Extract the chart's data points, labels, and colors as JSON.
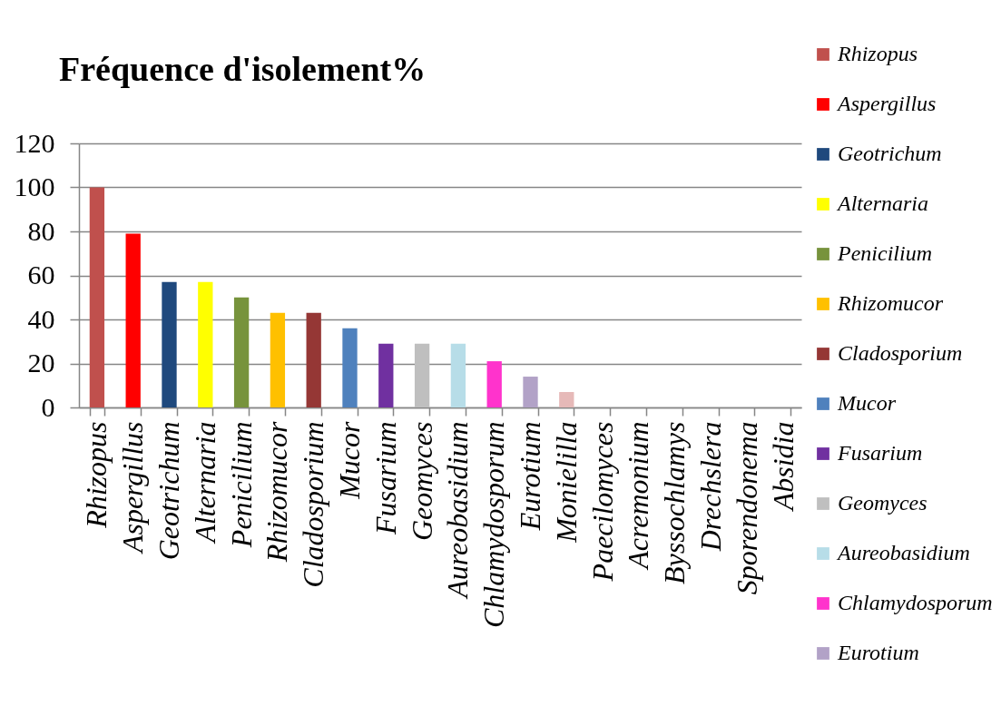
{
  "chart_data": {
    "type": "bar",
    "title": "Fréquence d'isolement%",
    "categories": [
      "Rhizopus",
      "Aspergillus",
      "Geotrichum",
      "Alternaria",
      "Penicilium",
      "Rhizomucor",
      "Cladosporium",
      "Mucor",
      "Fusarium",
      "Geomyces",
      "Aureobasidium",
      "Chlamydosporum",
      "Eurotium",
      "Monielilla",
      "Paecilomyces",
      "Acremonium",
      "Byssochlamys",
      "Drechslera",
      "Sporendonema",
      "Absidia"
    ],
    "stacked": true,
    "series": [
      {
        "name": "Rhizopus",
        "color": "#c0504d",
        "values": [
          100,
          null,
          null,
          null,
          null,
          null,
          null,
          null,
          null,
          null,
          null,
          null,
          null,
          null,
          null,
          null,
          null,
          null,
          null,
          null
        ]
      },
      {
        "name": "Aspergillus",
        "color": "#ff0000",
        "values": [
          null,
          79,
          null,
          null,
          null,
          null,
          null,
          null,
          null,
          null,
          null,
          null,
          null,
          null,
          null,
          null,
          null,
          null,
          null,
          null
        ]
      },
      {
        "name": "Geotrichum",
        "color": "#1f497d",
        "values": [
          null,
          null,
          57,
          null,
          null,
          null,
          null,
          null,
          null,
          null,
          null,
          null,
          null,
          null,
          null,
          null,
          null,
          null,
          null,
          null
        ]
      },
      {
        "name": "Alternaria",
        "color": "#ffff00",
        "values": [
          null,
          null,
          null,
          57,
          null,
          null,
          null,
          null,
          null,
          null,
          null,
          null,
          null,
          null,
          null,
          null,
          null,
          null,
          null,
          null
        ]
      },
      {
        "name": "Penicilium",
        "color": "#77933c",
        "values": [
          null,
          null,
          null,
          null,
          50,
          null,
          null,
          null,
          null,
          null,
          null,
          null,
          null,
          null,
          null,
          null,
          null,
          null,
          null,
          null
        ]
      },
      {
        "name": "Rhizomucor",
        "color": "#ffc000",
        "values": [
          null,
          null,
          null,
          null,
          null,
          43,
          null,
          null,
          null,
          null,
          null,
          null,
          null,
          null,
          null,
          null,
          null,
          null,
          null,
          null
        ]
      },
      {
        "name": "Cladosporium",
        "color": "#953735",
        "values": [
          null,
          null,
          null,
          null,
          null,
          null,
          43,
          null,
          null,
          null,
          null,
          null,
          null,
          null,
          null,
          null,
          null,
          null,
          null,
          null
        ]
      },
      {
        "name": "Mucor",
        "color": "#4f81bd",
        "values": [
          null,
          null,
          null,
          null,
          null,
          null,
          null,
          36,
          null,
          null,
          null,
          null,
          null,
          null,
          null,
          null,
          null,
          null,
          null,
          null
        ]
      },
      {
        "name": "Fusarium",
        "color": "#7030a0",
        "values": [
          null,
          null,
          null,
          null,
          null,
          null,
          null,
          null,
          29,
          null,
          null,
          null,
          null,
          null,
          null,
          null,
          null,
          null,
          null,
          null
        ]
      },
      {
        "name": "Geomyces",
        "color": "#bfbfbf",
        "values": [
          null,
          null,
          null,
          null,
          null,
          null,
          null,
          null,
          null,
          29,
          null,
          null,
          null,
          null,
          null,
          null,
          null,
          null,
          null,
          null
        ]
      },
      {
        "name": "Aureobasidium",
        "color": "#b7dde8",
        "values": [
          null,
          null,
          null,
          null,
          null,
          null,
          null,
          null,
          null,
          null,
          29,
          null,
          null,
          null,
          null,
          null,
          null,
          null,
          null,
          null
        ]
      },
      {
        "name": "Chlamydosporum",
        "color": "#ff33cc",
        "values": [
          null,
          null,
          null,
          null,
          null,
          null,
          null,
          null,
          null,
          null,
          null,
          21,
          null,
          null,
          null,
          null,
          null,
          null,
          null,
          null
        ]
      },
      {
        "name": "Eurotium",
        "color": "#b2a2c7",
        "values": [
          null,
          null,
          null,
          null,
          null,
          null,
          null,
          null,
          null,
          null,
          null,
          null,
          14,
          null,
          null,
          null,
          null,
          null,
          null,
          null
        ]
      },
      {
        "color": "#e6b9b8",
        "values": [
          null,
          null,
          null,
          null,
          null,
          null,
          null,
          null,
          null,
          null,
          null,
          null,
          null,
          7,
          0,
          0,
          0,
          0,
          0,
          0
        ]
      }
    ],
    "ylim": [
      0,
      120
    ],
    "yticks": [
      0,
      20,
      40,
      60,
      80,
      100,
      120
    ],
    "grid": "y",
    "legend": "right"
  }
}
